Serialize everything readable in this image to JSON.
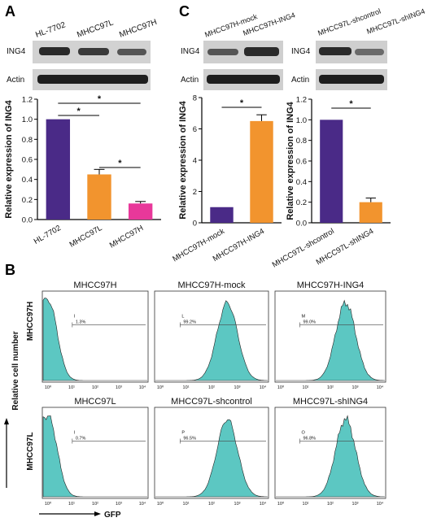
{
  "colors": {
    "purple": "#4a2a87",
    "orange": "#f2942e",
    "magenta": "#e8389a",
    "teal": "#5cc7c2",
    "blot_bg": "#cfcfcf",
    "band": "#2a2a2a"
  },
  "panel_letters": {
    "a": "A",
    "b": "B",
    "c": "C"
  },
  "panel_a": {
    "lanes": [
      "HL-7702",
      "MHCC97L",
      "MHCC97H"
    ],
    "blot_rows": [
      "ING4",
      "Actin"
    ],
    "stars": [
      "*",
      "*",
      "*"
    ],
    "yticks": [
      "0.0",
      "0.2",
      "0.4",
      "0.6",
      "0.8",
      "1.0",
      "1.2"
    ]
  },
  "panel_c_left": {
    "lanes": [
      "MHCC97H-mock",
      "MHCC97H-ING4"
    ],
    "blot_rows": [
      "ING4",
      "Actin"
    ],
    "stars": [
      "*"
    ],
    "yticks": [
      "0",
      "2",
      "4",
      "6",
      "8"
    ]
  },
  "panel_c_right": {
    "lanes": [
      "MHCC97L-shcontrol",
      "MHCC97L-shING4"
    ],
    "blot_rows": [
      "ING4",
      "Actin"
    ],
    "stars": [
      "*"
    ],
    "yticks": [
      "0.0",
      "0.2",
      "0.4",
      "0.6",
      "0.8",
      "1.0",
      "1.2"
    ]
  },
  "panel_b": {
    "row_labels": [
      "MHCC97H",
      "MHCC97L"
    ],
    "y_axis_label": "Relative cell number",
    "x_axis_label": "GFP",
    "x_ticks": [
      "10⁰",
      "10¹",
      "10²",
      "10³",
      "10⁴"
    ],
    "histograms": [
      {
        "title": "MHCC97H",
        "gate": "I",
        "pct": "1.3%"
      },
      {
        "title": "MHCC97H-mock",
        "gate": "L",
        "pct": "99.2%"
      },
      {
        "title": "MHCC97H-ING4",
        "gate": "M",
        "pct": "99.0%"
      },
      {
        "title": "MHCC97L",
        "gate": "I",
        "pct": "0.7%"
      },
      {
        "title": "MHCC97L-shcontrol",
        "gate": "P",
        "pct": "96.5%"
      },
      {
        "title": "MHCC97L-shING4",
        "gate": "O",
        "pct": "96.8%"
      }
    ]
  },
  "chart_data": [
    {
      "type": "bar",
      "categories": [
        "HL-7702",
        "MHCC97L",
        "MHCC97H"
      ],
      "values": [
        1.0,
        0.45,
        0.16
      ],
      "errors": [
        0,
        0.05,
        0.02
      ],
      "ylabel": "Relative expression of ING4",
      "ylim": [
        0,
        1.2
      ],
      "colors": [
        "#4a2a87",
        "#f2942e",
        "#e8389a"
      ]
    },
    {
      "type": "bar",
      "categories": [
        "MHCC97H-mock",
        "MHCC97H-ING4"
      ],
      "values": [
        1.0,
        6.5
      ],
      "errors": [
        0,
        0.4
      ],
      "ylabel": "Relative expression of ING4",
      "ylim": [
        0,
        8
      ],
      "colors": [
        "#4a2a87",
        "#f2942e"
      ]
    },
    {
      "type": "bar",
      "categories": [
        "MHCC97L-shcontrol",
        "MHCC97L-shING4"
      ],
      "values": [
        1.0,
        0.2
      ],
      "errors": [
        0,
        0.04
      ],
      "ylabel": "Relative expression of ING4",
      "ylim": [
        0,
        1.2
      ],
      "colors": [
        "#4a2a87",
        "#f2942e"
      ]
    }
  ]
}
